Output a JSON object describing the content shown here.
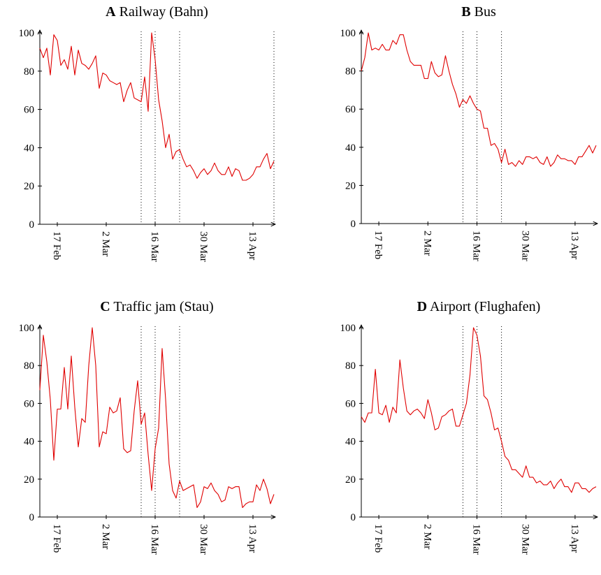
{
  "chart_data": [
    {
      "type": "line",
      "panel": "A",
      "title": "Railway (Bahn)",
      "color": "#e00000",
      "categories": [
        null,
        null,
        null,
        null,
        null,
        "17 Feb",
        null,
        null,
        null,
        null,
        null,
        null,
        null,
        null,
        null,
        null,
        null,
        null,
        null,
        "2 Mar",
        null,
        null,
        null,
        null,
        null,
        null,
        null,
        null,
        null,
        null,
        null,
        null,
        null,
        "16 Mar",
        null,
        null,
        null,
        null,
        null,
        null,
        null,
        null,
        null,
        null,
        null,
        null,
        null,
        "30 Mar",
        null,
        null,
        null,
        null,
        null,
        null,
        null,
        null,
        null,
        null,
        null,
        null,
        null,
        "13 Apr",
        null,
        null,
        null,
        null,
        null,
        null
      ],
      "values": [
        92,
        87,
        92,
        78,
        99,
        96,
        83,
        86,
        81,
        93,
        78,
        91,
        84,
        83,
        81,
        84,
        88,
        71,
        79,
        78,
        75,
        74,
        73,
        74,
        64,
        70,
        74,
        66,
        65,
        64,
        77,
        59,
        100,
        86,
        65,
        54,
        40,
        47,
        34,
        38,
        39,
        34,
        30,
        31,
        28,
        24,
        27,
        29,
        26,
        28,
        32,
        28,
        26,
        26,
        30,
        25,
        29,
        28,
        23,
        23,
        24,
        26,
        30,
        30,
        34,
        37,
        29,
        33
      ],
      "ylim": [
        0,
        100
      ],
      "yticks": [
        0,
        20,
        40,
        60,
        80,
        100
      ],
      "vlines": [
        29,
        33,
        40,
        67
      ]
    },
    {
      "type": "line",
      "panel": "B",
      "title": "Bus",
      "color": "#e00000",
      "categories": [
        null,
        null,
        null,
        null,
        null,
        "17 Feb",
        null,
        null,
        null,
        null,
        null,
        null,
        null,
        null,
        null,
        null,
        null,
        null,
        null,
        "2 Mar",
        null,
        null,
        null,
        null,
        null,
        null,
        null,
        null,
        null,
        null,
        null,
        null,
        null,
        "16 Mar",
        null,
        null,
        null,
        null,
        null,
        null,
        null,
        null,
        null,
        null,
        null,
        null,
        null,
        "30 Mar",
        null,
        null,
        null,
        null,
        null,
        null,
        null,
        null,
        null,
        null,
        null,
        null,
        null,
        "13 Apr",
        null,
        null,
        null,
        null,
        null,
        null
      ],
      "values": [
        80,
        87,
        100,
        91,
        92,
        91,
        94,
        91,
        91,
        96,
        94,
        99,
        99,
        91,
        85,
        83,
        83,
        83,
        76,
        76,
        85,
        79,
        77,
        78,
        88,
        80,
        73,
        68,
        61,
        65,
        63,
        67,
        63,
        60,
        59,
        50,
        50,
        41,
        42,
        39,
        32,
        39,
        31,
        32,
        30,
        33,
        31,
        35,
        35,
        34,
        35,
        32,
        31,
        35,
        30,
        32,
        36,
        34,
        34,
        33,
        33,
        31,
        35,
        35,
        38,
        41,
        37,
        41
      ],
      "ylim": [
        0,
        100
      ],
      "yticks": [
        0,
        20,
        40,
        60,
        80,
        100
      ],
      "vlines": [
        29,
        33,
        40
      ]
    },
    {
      "type": "line",
      "panel": "C",
      "title": "Traffic jam (Stau)",
      "color": "#e00000",
      "categories": [
        null,
        null,
        null,
        null,
        null,
        "17 Feb",
        null,
        null,
        null,
        null,
        null,
        null,
        null,
        null,
        null,
        null,
        null,
        null,
        null,
        "2 Mar",
        null,
        null,
        null,
        null,
        null,
        null,
        null,
        null,
        null,
        null,
        null,
        null,
        null,
        "16 Mar",
        null,
        null,
        null,
        null,
        null,
        null,
        null,
        null,
        null,
        null,
        null,
        null,
        null,
        "30 Mar",
        null,
        null,
        null,
        null,
        null,
        null,
        null,
        null,
        null,
        null,
        null,
        null,
        null,
        "13 Apr",
        null,
        null,
        null,
        null,
        null,
        null
      ],
      "values": [
        67,
        96,
        82,
        62,
        30,
        57,
        57,
        79,
        57,
        85,
        58,
        37,
        52,
        50,
        80,
        100,
        80,
        37,
        45,
        44,
        58,
        55,
        56,
        63,
        36,
        34,
        35,
        56,
        72,
        49,
        55,
        33,
        14,
        36,
        47,
        89,
        62,
        28,
        14,
        10,
        19,
        14,
        15,
        16,
        17,
        5,
        8,
        16,
        15,
        18,
        14,
        12,
        8,
        9,
        16,
        15,
        16,
        16,
        5,
        7,
        8,
        8,
        17,
        14,
        20,
        15,
        7,
        12
      ],
      "ylim": [
        0,
        100
      ],
      "yticks": [
        0,
        20,
        40,
        60,
        80,
        100
      ],
      "vlines": [
        29,
        33,
        40
      ]
    },
    {
      "type": "line",
      "panel": "D",
      "title": "Airport (Flughafen)",
      "color": "#e00000",
      "categories": [
        null,
        null,
        null,
        null,
        null,
        "17 Feb",
        null,
        null,
        null,
        null,
        null,
        null,
        null,
        null,
        null,
        null,
        null,
        null,
        null,
        "2 Mar",
        null,
        null,
        null,
        null,
        null,
        null,
        null,
        null,
        null,
        null,
        null,
        null,
        null,
        "16 Mar",
        null,
        null,
        null,
        null,
        null,
        null,
        null,
        null,
        null,
        null,
        null,
        null,
        null,
        "30 Mar",
        null,
        null,
        null,
        null,
        null,
        null,
        null,
        null,
        null,
        null,
        null,
        null,
        null,
        "13 Apr",
        null,
        null,
        null,
        null,
        null,
        null
      ],
      "values": [
        53,
        50,
        55,
        55,
        78,
        55,
        54,
        59,
        50,
        58,
        55,
        83,
        68,
        56,
        54,
        56,
        57,
        55,
        52,
        62,
        55,
        46,
        47,
        53,
        54,
        56,
        57,
        48,
        48,
        54,
        60,
        75,
        100,
        96,
        85,
        64,
        62,
        55,
        46,
        47,
        40,
        32,
        30,
        25,
        25,
        23,
        21,
        27,
        21,
        21,
        18,
        19,
        17,
        17,
        19,
        15,
        18,
        20,
        16,
        16,
        13,
        18,
        18,
        15,
        15,
        13,
        15,
        16
      ],
      "ylim": [
        0,
        100
      ],
      "yticks": [
        0,
        20,
        40,
        60,
        80,
        100
      ],
      "vlines": [
        29,
        33,
        40
      ]
    }
  ]
}
